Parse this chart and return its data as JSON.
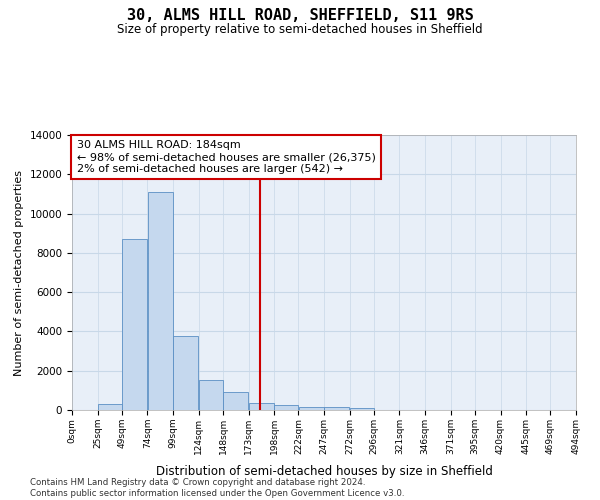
{
  "title": "30, ALMS HILL ROAD, SHEFFIELD, S11 9RS",
  "subtitle": "Size of property relative to semi-detached houses in Sheffield",
  "xlabel": "Distribution of semi-detached houses by size in Sheffield",
  "ylabel": "Number of semi-detached properties",
  "annotation_text_line1": "30 ALMS HILL ROAD: 184sqm",
  "annotation_text_line2": "← 98% of semi-detached houses are smaller (26,375)",
  "annotation_text_line3": "2% of semi-detached houses are larger (542) →",
  "bin_edges": [
    0,
    25,
    49,
    74,
    99,
    124,
    148,
    173,
    198,
    222,
    247,
    272,
    296,
    321,
    346,
    371,
    395,
    420,
    445,
    469,
    494
  ],
  "bar_heights": [
    0,
    300,
    8700,
    11100,
    3750,
    1550,
    900,
    350,
    250,
    150,
    150,
    100,
    0,
    0,
    0,
    0,
    0,
    0,
    0,
    0
  ],
  "bar_color": "#c5d8ee",
  "bar_edge_color": "#5a8fc4",
  "vline_color": "#cc0000",
  "vline_x": 184,
  "annotation_box_color": "#cc0000",
  "grid_color": "#c8d8e8",
  "background_color": "#e8eff8",
  "tick_labels": [
    "0sqm",
    "25sqm",
    "49sqm",
    "74sqm",
    "99sqm",
    "124sqm",
    "148sqm",
    "173sqm",
    "198sqm",
    "222sqm",
    "247sqm",
    "272sqm",
    "296sqm",
    "321sqm",
    "346sqm",
    "371sqm",
    "395sqm",
    "420sqm",
    "445sqm",
    "469sqm",
    "494sqm"
  ],
  "ylim": [
    0,
    14000
  ],
  "yticks": [
    0,
    2000,
    4000,
    6000,
    8000,
    10000,
    12000,
    14000
  ],
  "footer_line1": "Contains HM Land Registry data © Crown copyright and database right 2024.",
  "footer_line2": "Contains public sector information licensed under the Open Government Licence v3.0."
}
